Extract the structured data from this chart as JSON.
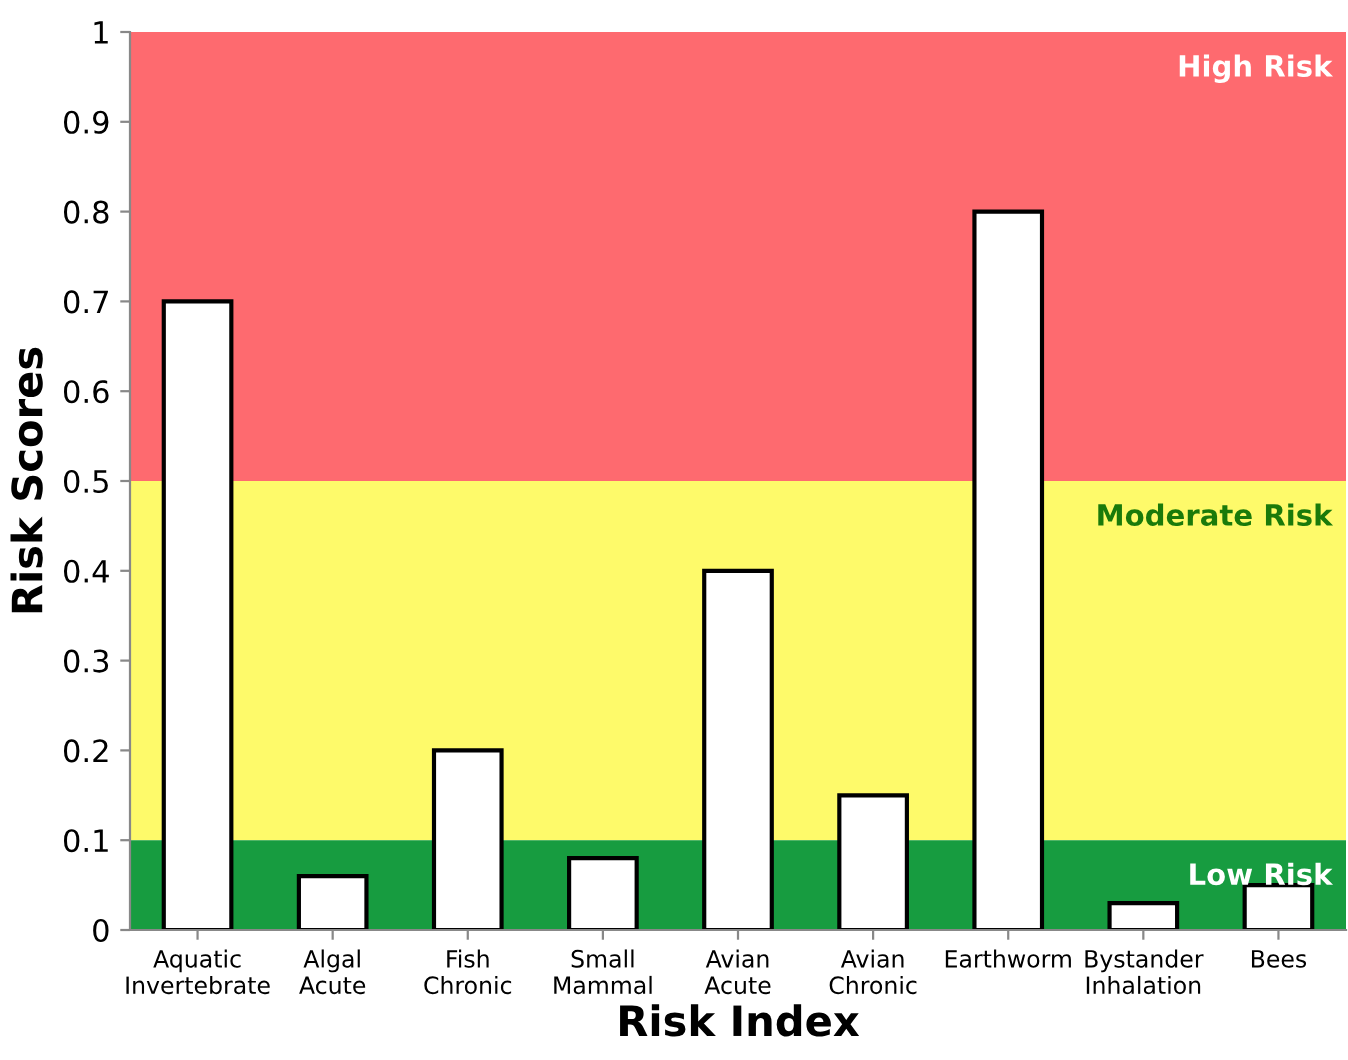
{
  "chart_data": {
    "type": "bar",
    "xlabel": "Risk Index",
    "ylabel": "Risk Scores",
    "categories": [
      "Aquatic\nInvertebrate",
      "Algal\nAcute",
      "Fish\nChronic",
      "Small\nMammal",
      "Avian\nAcute",
      "Avian\nChronic",
      "Earthworm",
      "Bystander\nInhalation",
      "Bees"
    ],
    "values": [
      0.7,
      0.06,
      0.2,
      0.08,
      0.4,
      0.15,
      0.8,
      0.03,
      0.05
    ],
    "color": "#ffffff",
    "ylim": [
      0,
      1
    ],
    "yticks": [
      0,
      0.1,
      0.2,
      0.3,
      0.4,
      0.5,
      0.6,
      0.7,
      0.8,
      0.9,
      1
    ],
    "bands": [
      {
        "axis": "y",
        "from": 0.5,
        "to": 1,
        "label": "High Risk",
        "color": "#fe6a6f"
      },
      {
        "axis": "y",
        "from": 0.1,
        "to": 0.5,
        "label": "Moderate Risk",
        "color": "#fefa6a"
      },
      {
        "axis": "y",
        "from": 0,
        "to": 0.1,
        "label": "Low Risk",
        "color": "#179c40"
      }
    ],
    "grid": false
  }
}
